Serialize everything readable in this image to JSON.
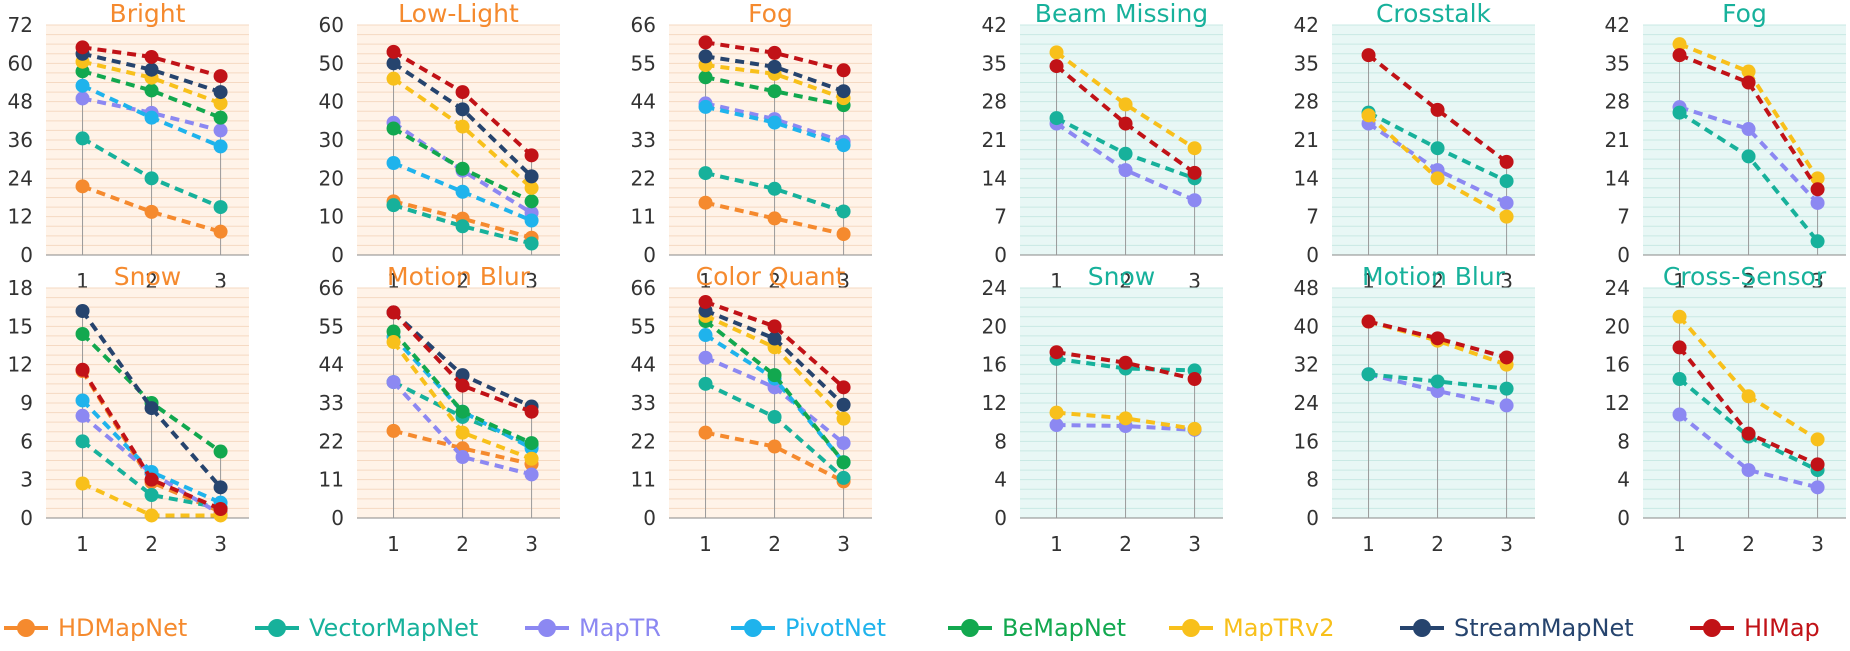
{
  "series_names": [
    "HDMapNet",
    "VectorMapNet",
    "MapTR",
    "PivotNet",
    "BeMapNet",
    "MapTRv2",
    "StreamMapNet",
    "HIMap"
  ],
  "series_colors": [
    "#F58A2E",
    "#17B19B",
    "#8C88F2",
    "#1FB3EC",
    "#12A84F",
    "#F8C01B",
    "#26446E",
    "#C11217"
  ],
  "group_styles": {
    "camera": {
      "bg": "#FFF3E8",
      "grid": "#F5D9C2",
      "title_color": "#F58A2E"
    },
    "lidar": {
      "bg": "#E8F7F5",
      "grid": "#C9E9E4",
      "title_color": "#17B19B"
    }
  },
  "chart_data": [
    {
      "type": "line",
      "group": "camera",
      "title": "Bright",
      "categories": [
        "1",
        "2",
        "3"
      ],
      "ylim": [
        0,
        72
      ],
      "yticks": [
        0,
        12,
        24,
        36,
        48,
        60,
        72
      ],
      "series": [
        {
          "name": "HDMapNet",
          "values": [
            21.5,
            13.5,
            7.3
          ]
        },
        {
          "name": "VectorMapNet",
          "values": [
            36.5,
            24,
            15
          ]
        },
        {
          "name": "MapTR",
          "values": [
            49,
            44.5,
            39
          ]
        },
        {
          "name": "PivotNet",
          "values": [
            53,
            43,
            34
          ]
        },
        {
          "name": "BeMapNet",
          "values": [
            57.5,
            51.5,
            43
          ]
        },
        {
          "name": "MapTRv2",
          "values": [
            60.5,
            55.5,
            47.5
          ]
        },
        {
          "name": "StreamMapNet",
          "values": [
            63,
            58,
            51
          ]
        },
        {
          "name": "HIMap",
          "values": [
            65,
            62,
            56
          ]
        }
      ]
    },
    {
      "type": "line",
      "group": "camera",
      "title": "Low-Light",
      "categories": [
        "1",
        "2",
        "3"
      ],
      "ylim": [
        0,
        60
      ],
      "yticks": [
        0,
        10,
        20,
        30,
        40,
        50,
        60
      ],
      "series": [
        {
          "name": "HDMapNet",
          "values": [
            14,
            9.5,
            4.5
          ]
        },
        {
          "name": "VectorMapNet",
          "values": [
            13,
            7.5,
            3
          ]
        },
        {
          "name": "MapTR",
          "values": [
            34.5,
            22,
            11
          ]
        },
        {
          "name": "PivotNet",
          "values": [
            24,
            16.5,
            9
          ]
        },
        {
          "name": "BeMapNet",
          "values": [
            33,
            22.5,
            14
          ]
        },
        {
          "name": "MapTRv2",
          "values": [
            46,
            33.5,
            17.5
          ]
        },
        {
          "name": "StreamMapNet",
          "values": [
            50,
            38,
            20.5
          ]
        },
        {
          "name": "HIMap",
          "values": [
            53,
            42.5,
            26
          ]
        }
      ]
    },
    {
      "type": "line",
      "group": "camera",
      "title": "Fog",
      "categories": [
        "1",
        "2",
        "3"
      ],
      "ylim": [
        0,
        66
      ],
      "yticks": [
        0,
        11,
        22,
        33,
        44,
        55,
        66
      ],
      "series": [
        {
          "name": "HDMapNet",
          "values": [
            15,
            10.5,
            6
          ]
        },
        {
          "name": "VectorMapNet",
          "values": [
            23.5,
            19,
            12.5
          ]
        },
        {
          "name": "MapTR",
          "values": [
            43.5,
            39,
            32.5
          ]
        },
        {
          "name": "PivotNet",
          "values": [
            42.5,
            38,
            31.5
          ]
        },
        {
          "name": "BeMapNet",
          "values": [
            51,
            47,
            43
          ]
        },
        {
          "name": "MapTRv2",
          "values": [
            54.5,
            52,
            45
          ]
        },
        {
          "name": "StreamMapNet",
          "values": [
            57,
            54,
            47
          ]
        },
        {
          "name": "HIMap",
          "values": [
            61,
            58,
            53
          ]
        }
      ]
    },
    {
      "type": "line",
      "group": "lidar",
      "title": "Beam Missing",
      "categories": [
        "1",
        "2",
        "3"
      ],
      "ylim": [
        0,
        42
      ],
      "yticks": [
        0,
        7,
        14,
        21,
        28,
        35,
        42
      ],
      "series": [
        {
          "name": "MapTR",
          "values": [
            24,
            15.5,
            10
          ]
        },
        {
          "name": "VectorMapNet",
          "values": [
            25,
            18.5,
            14
          ]
        },
        {
          "name": "MapTRv2",
          "values": [
            37,
            27.5,
            19.5
          ]
        },
        {
          "name": "HIMap",
          "values": [
            34.5,
            24,
            15
          ]
        }
      ]
    },
    {
      "type": "line",
      "group": "lidar",
      "title": "Crosstalk",
      "categories": [
        "1",
        "2",
        "3"
      ],
      "ylim": [
        0,
        42
      ],
      "yticks": [
        0,
        7,
        14,
        21,
        28,
        35,
        42
      ],
      "series": [
        {
          "name": "MapTR",
          "values": [
            24,
            15.5,
            9.5
          ]
        },
        {
          "name": "VectorMapNet",
          "values": [
            26,
            19.5,
            13.5
          ]
        },
        {
          "name": "MapTRv2",
          "values": [
            25.5,
            14,
            7
          ]
        },
        {
          "name": "HIMap",
          "values": [
            36.5,
            26.5,
            17
          ]
        }
      ]
    },
    {
      "type": "line",
      "group": "lidar",
      "title": "Fog",
      "categories": [
        "1",
        "2",
        "3"
      ],
      "ylim": [
        0,
        42
      ],
      "yticks": [
        0,
        7,
        14,
        21,
        28,
        35,
        42
      ],
      "series": [
        {
          "name": "MapTR",
          "values": [
            27,
            23,
            9.5
          ]
        },
        {
          "name": "VectorMapNet",
          "values": [
            26,
            18,
            2.5
          ]
        },
        {
          "name": "MapTRv2",
          "values": [
            38.5,
            33.5,
            14
          ]
        },
        {
          "name": "HIMap",
          "values": [
            36.5,
            31.5,
            12
          ]
        }
      ]
    },
    {
      "type": "line",
      "group": "camera",
      "title": "Snow",
      "categories": [
        "1",
        "2",
        "3"
      ],
      "ylim": [
        0,
        18
      ],
      "yticks": [
        0,
        3,
        6,
        9,
        12,
        15,
        18
      ],
      "series": [
        {
          "name": "HDMapNet",
          "values": [
            11.5,
            2.8,
            0.5
          ]
        },
        {
          "name": "VectorMapNet",
          "values": [
            6,
            1.8,
            0.8
          ]
        },
        {
          "name": "MapTR",
          "values": [
            8,
            3.5,
            0.3
          ]
        },
        {
          "name": "PivotNet",
          "values": [
            9.2,
            3.6,
            1.2
          ]
        },
        {
          "name": "BeMapNet",
          "values": [
            14.4,
            9,
            5.2
          ]
        },
        {
          "name": "MapTRv2",
          "values": [
            2.7,
            0.2,
            0.2
          ]
        },
        {
          "name": "StreamMapNet",
          "values": [
            16.2,
            8.6,
            2.4
          ]
        },
        {
          "name": "HIMap",
          "values": [
            11.6,
            3,
            0.7
          ]
        }
      ]
    },
    {
      "type": "line",
      "group": "camera",
      "title": "Motion Blur",
      "categories": [
        "1",
        "2",
        "3"
      ],
      "ylim": [
        0,
        66
      ],
      "yticks": [
        0,
        11,
        22,
        33,
        44,
        55,
        66
      ],
      "series": [
        {
          "name": "HDMapNet",
          "values": [
            25,
            20,
            15.5
          ]
        },
        {
          "name": "VectorMapNet",
          "values": [
            39,
            29,
            21
          ]
        },
        {
          "name": "MapTR",
          "values": [
            39,
            17.5,
            12.5
          ]
        },
        {
          "name": "PivotNet",
          "values": [
            52,
            30.5,
            20
          ]
        },
        {
          "name": "BeMapNet",
          "values": [
            53.5,
            30.5,
            21.5
          ]
        },
        {
          "name": "MapTRv2",
          "values": [
            50.5,
            24.5,
            17
          ]
        },
        {
          "name": "StreamMapNet",
          "values": [
            59,
            41,
            32
          ]
        },
        {
          "name": "HIMap",
          "values": [
            59,
            38,
            30.5
          ]
        }
      ]
    },
    {
      "type": "line",
      "group": "camera",
      "title": "Color Quant",
      "categories": [
        "1",
        "2",
        "3"
      ],
      "ylim": [
        0,
        66
      ],
      "yticks": [
        0,
        11,
        22,
        33,
        44,
        55,
        66
      ],
      "series": [
        {
          "name": "HDMapNet",
          "values": [
            24.5,
            20.5,
            10.5
          ]
        },
        {
          "name": "VectorMapNet",
          "values": [
            38.5,
            29,
            11.5
          ]
        },
        {
          "name": "MapTR",
          "values": [
            46,
            37.5,
            21.5
          ]
        },
        {
          "name": "PivotNet",
          "values": [
            52.5,
            40,
            16
          ]
        },
        {
          "name": "BeMapNet",
          "values": [
            56.5,
            41,
            16
          ]
        },
        {
          "name": "MapTRv2",
          "values": [
            58,
            49,
            28.5
          ]
        },
        {
          "name": "StreamMapNet",
          "values": [
            59.5,
            51.5,
            32.5
          ]
        },
        {
          "name": "HIMap",
          "values": [
            62,
            55,
            37.5
          ]
        }
      ]
    },
    {
      "type": "line",
      "group": "lidar",
      "title": "Snow",
      "categories": [
        "1",
        "2",
        "3"
      ],
      "ylim": [
        0,
        24
      ],
      "yticks": [
        0,
        4,
        8,
        12,
        16,
        20,
        24
      ],
      "series": [
        {
          "name": "MapTR",
          "values": [
            9.7,
            9.6,
            9.2
          ]
        },
        {
          "name": "VectorMapNet",
          "values": [
            16.6,
            15.6,
            15.4
          ]
        },
        {
          "name": "MapTRv2",
          "values": [
            11,
            10.4,
            9.3
          ]
        },
        {
          "name": "HIMap",
          "values": [
            17.3,
            16.2,
            14.5
          ]
        }
      ]
    },
    {
      "type": "line",
      "group": "lidar",
      "title": "Motion Blur",
      "categories": [
        "1",
        "2",
        "3"
      ],
      "ylim": [
        0,
        48
      ],
      "yticks": [
        0,
        8,
        16,
        24,
        32,
        40,
        48
      ],
      "series": [
        {
          "name": "MapTR",
          "values": [
            30,
            26.5,
            23.5
          ]
        },
        {
          "name": "VectorMapNet",
          "values": [
            30,
            28.5,
            27
          ]
        },
        {
          "name": "MapTRv2",
          "values": [
            41,
            37,
            32
          ]
        },
        {
          "name": "HIMap",
          "values": [
            41,
            37.5,
            33.5
          ]
        }
      ]
    },
    {
      "type": "line",
      "group": "lidar",
      "title": "Cross-Sensor",
      "categories": [
        "1",
        "2",
        "3"
      ],
      "ylim": [
        0,
        24
      ],
      "yticks": [
        0,
        4,
        8,
        12,
        16,
        20,
        24
      ],
      "series": [
        {
          "name": "MapTR",
          "values": [
            10.8,
            5,
            3.2
          ]
        },
        {
          "name": "VectorMapNet",
          "values": [
            14.5,
            8.5,
            5
          ]
        },
        {
          "name": "MapTRv2",
          "values": [
            21,
            12.7,
            8.2
          ]
        },
        {
          "name": "HIMap",
          "values": [
            17.8,
            8.8,
            5.6
          ]
        }
      ]
    }
  ]
}
